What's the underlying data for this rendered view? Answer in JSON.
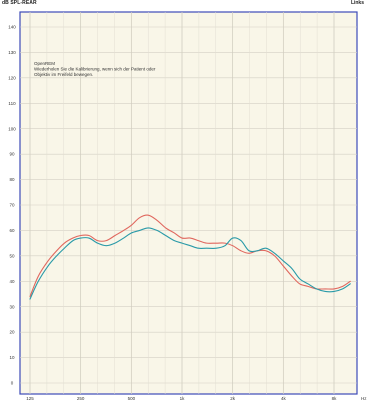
{
  "header": {
    "left": "dB SPL-REAR",
    "right": "Links"
  },
  "chart_data": {
    "type": "line",
    "xlabel": "Hz",
    "ylabel": "",
    "ylim": [
      0,
      140
    ],
    "x_scale": "log",
    "x_ticks": [
      {
        "value": 125,
        "label": "125"
      },
      {
        "value": 250,
        "label": "250"
      },
      {
        "value": 500,
        "label": "500"
      },
      {
        "value": 1000,
        "label": "1k"
      },
      {
        "value": 2000,
        "label": "2k"
      },
      {
        "value": 4000,
        "label": "4k"
      },
      {
        "value": 8000,
        "label": "8k"
      }
    ],
    "y_ticks": [
      0,
      10,
      20,
      30,
      40,
      50,
      60,
      70,
      80,
      90,
      100,
      110,
      120,
      130,
      140
    ],
    "annotation": [
      "OpenREM",
      "Wiederholen Sie die Kalibrierung, wenn sich der Patient oder",
      "Objektiv im Freifeld bewegen."
    ],
    "series": [
      {
        "color": "#e0675e",
        "x": [
          125,
          140,
          160,
          180,
          200,
          225,
          250,
          280,
          315,
          355,
          400,
          450,
          500,
          560,
          630,
          710,
          800,
          900,
          1000,
          1120,
          1250,
          1400,
          1600,
          1800,
          2000,
          2240,
          2500,
          2800,
          3150,
          3550,
          4000,
          4500,
          5000,
          5600,
          6300,
          7100,
          8000,
          9000,
          10000
        ],
        "values": [
          34,
          42,
          48,
          52,
          55,
          57,
          58,
          58,
          56,
          56,
          58,
          60,
          62,
          65,
          66,
          64,
          61,
          59,
          57,
          57,
          56,
          55,
          55,
          55,
          54,
          52,
          51,
          52,
          52,
          50,
          46,
          42,
          39,
          38,
          37,
          37,
          37,
          38,
          40
        ]
      },
      {
        "color": "#2a9aa8",
        "x": [
          125,
          140,
          160,
          180,
          200,
          225,
          250,
          280,
          315,
          355,
          400,
          450,
          500,
          560,
          630,
          710,
          800,
          900,
          1000,
          1120,
          1250,
          1400,
          1600,
          1800,
          2000,
          2240,
          2500,
          2800,
          3150,
          3550,
          4000,
          4500,
          5000,
          5600,
          6300,
          7100,
          8000,
          9000,
          10000
        ],
        "values": [
          33,
          40,
          46,
          50,
          53,
          56,
          57,
          57,
          55,
          54,
          55,
          57,
          59,
          60,
          61,
          60,
          58,
          56,
          55,
          54,
          53,
          53,
          53,
          54,
          57,
          56,
          52,
          52,
          53,
          51,
          48,
          45,
          41,
          39,
          37,
          36,
          36,
          37,
          39
        ]
      }
    ]
  }
}
